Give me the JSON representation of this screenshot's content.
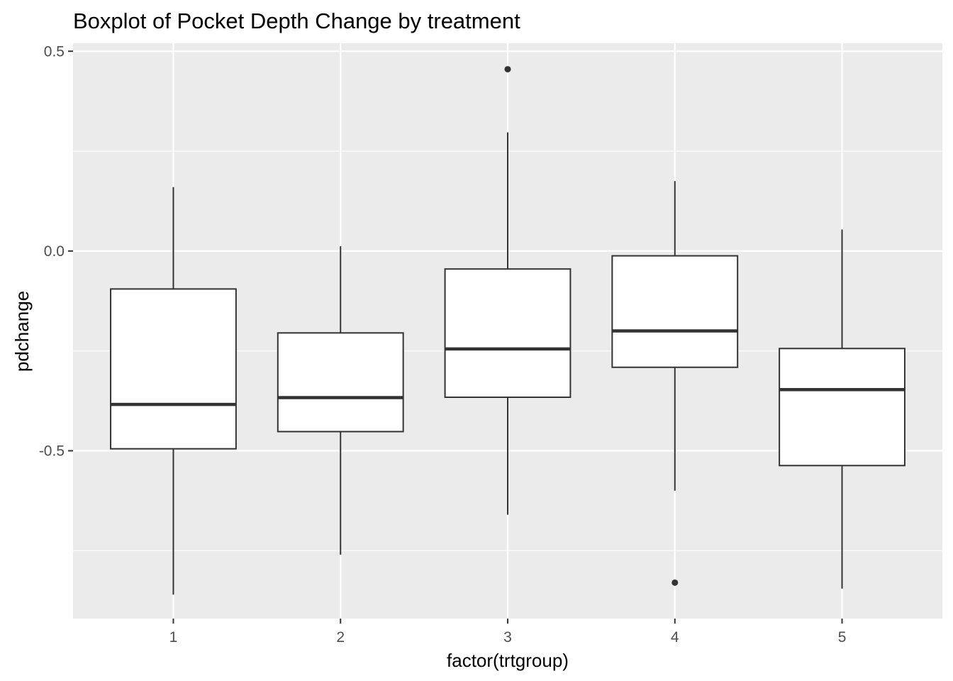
{
  "chart_data": {
    "type": "boxplot",
    "title": "Boxplot of Pocket Depth Change by treatment",
    "xlabel": "factor(trtgroup)",
    "ylabel": "pdchange",
    "categories": [
      "1",
      "2",
      "3",
      "4",
      "5"
    ],
    "ylim": [
      -0.92,
      0.52
    ],
    "yticks": [
      -0.5,
      0.0,
      0.5
    ],
    "ytick_labels": [
      "-0.5",
      "0.0",
      "0.5"
    ],
    "grid": true,
    "boxes": [
      {
        "group": "1",
        "lower_whisker": -0.86,
        "q1": -0.495,
        "median": -0.384,
        "q3": -0.095,
        "upper_whisker": 0.16,
        "outliers": []
      },
      {
        "group": "2",
        "lower_whisker": -0.76,
        "q1": -0.452,
        "median": -0.367,
        "q3": -0.205,
        "upper_whisker": 0.012,
        "outliers": []
      },
      {
        "group": "3",
        "lower_whisker": -0.66,
        "q1": -0.366,
        "median": -0.245,
        "q3": -0.045,
        "upper_whisker": 0.297,
        "outliers": [
          0.455
        ]
      },
      {
        "group": "4",
        "lower_whisker": -0.6,
        "q1": -0.291,
        "median": -0.2,
        "q3": -0.012,
        "upper_whisker": 0.175,
        "outliers": [
          -0.83
        ]
      },
      {
        "group": "5",
        "lower_whisker": -0.845,
        "q1": -0.537,
        "median": -0.347,
        "q3": -0.244,
        "upper_whisker": 0.054,
        "outliers": []
      }
    ],
    "colors": {
      "panel_background": "#ebebeb",
      "grid": "#ffffff",
      "box_fill": "#ffffff",
      "box_line": "#333333",
      "tick": "#333333"
    }
  }
}
